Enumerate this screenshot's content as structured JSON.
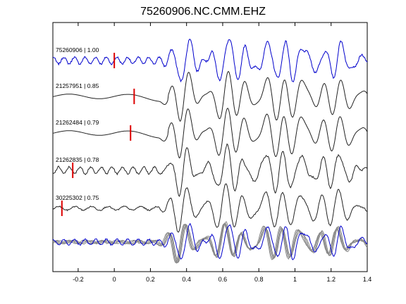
{
  "chart_data": {
    "type": "line",
    "title": "75260906.NC.CMM.EHZ",
    "xlabel": "",
    "ylabel": "",
    "xlim": [
      -0.34,
      1.4
    ],
    "x_ticks": [
      -0.2,
      0,
      0.2,
      0.4,
      0.6,
      0.8,
      1,
      1.2,
      1.4
    ],
    "x_tick_labels": [
      "-0.2",
      "0",
      "0.2",
      "0.4",
      "0.6",
      "0.8",
      "1",
      "1.2",
      "1.4"
    ],
    "grid": false,
    "colors": {
      "reference": "#0000cc",
      "trace": "#222222",
      "overlay": "#888888",
      "pick": "#dd0000"
    },
    "traces": [
      {
        "label": "75260906 | 1.00",
        "pick_time": 0.0,
        "color": "reference",
        "preset": "noisy_early"
      },
      {
        "label": "21257951 | 0.85",
        "pick_time": 0.11,
        "color": "trace",
        "preset": "smooth"
      },
      {
        "label": "21262484 | 0.79",
        "pick_time": 0.09,
        "color": "trace",
        "preset": "smooth"
      },
      {
        "label": "21262835 | 0.78",
        "pick_time": -0.23,
        "color": "trace",
        "preset": "noisy_early"
      },
      {
        "label": "30225302 | 0.75",
        "pick_time": -0.29,
        "color": "trace",
        "preset": "medium"
      }
    ],
    "stack": {
      "description": "overlay of all traces"
    }
  }
}
